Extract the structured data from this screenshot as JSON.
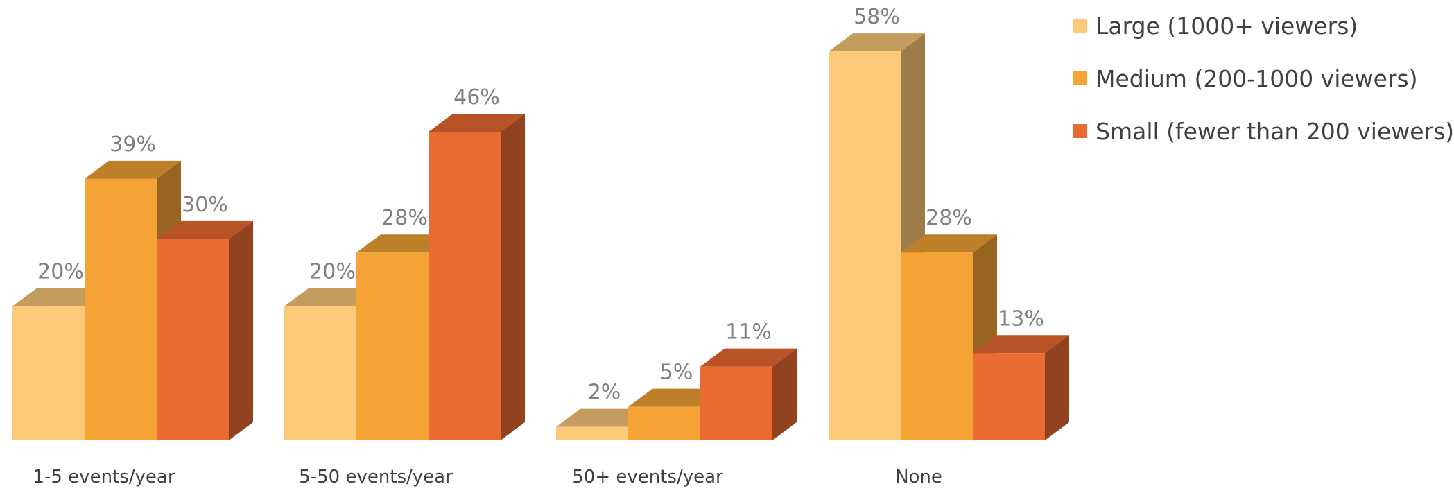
{
  "chart_data": {
    "type": "bar",
    "title": "",
    "xlabel": "",
    "ylabel": "",
    "categories": [
      "1-5 events/year",
      "5-50 events/year",
      "50+ events/year",
      "None"
    ],
    "series": [
      {
        "name": "Large (1000+ viewers)",
        "values": [
          20,
          20,
          2,
          58
        ],
        "labels": [
          "20%",
          "20%",
          "2%",
          "58%"
        ],
        "color": "#FBC978"
      },
      {
        "name": "Medium (200-1000 viewers)",
        "values": [
          39,
          28,
          5,
          28
        ],
        "labels": [
          "39%",
          "28%",
          "5%",
          "28%"
        ],
        "color": "#F4A334"
      },
      {
        "name": "Small (fewer than 200 viewers)",
        "values": [
          30,
          46,
          11,
          13
        ],
        "labels": [
          "30%",
          "46%",
          "11%",
          "13%"
        ],
        "color": "#EA6B31"
      }
    ],
    "ylim": [
      0,
      60
    ],
    "unit": "%",
    "legend_position": "top-right",
    "grid": false,
    "style": "3d-column"
  }
}
